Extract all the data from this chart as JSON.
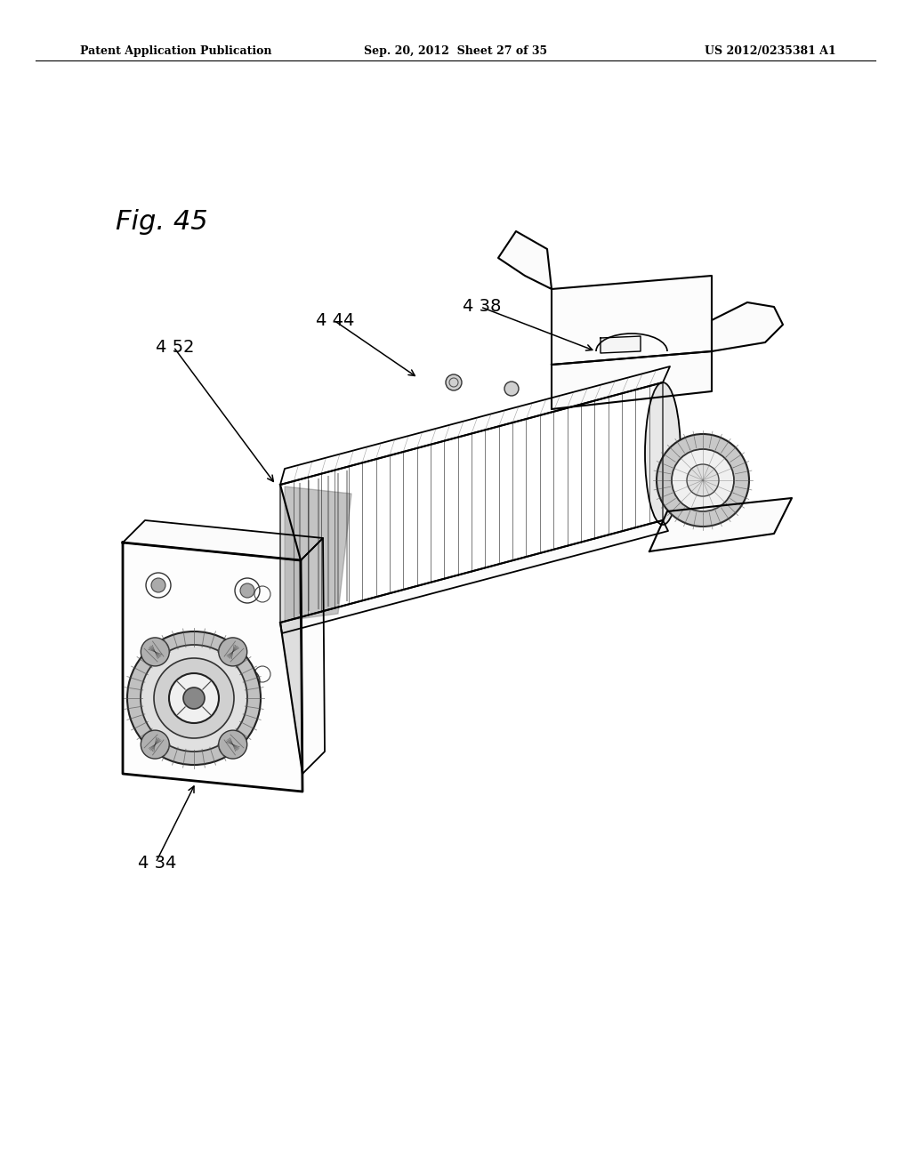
{
  "background_color": "#ffffff",
  "header_left": "Patent Application Publication",
  "header_center": "Sep. 20, 2012  Sheet 27 of 35",
  "header_right": "US 2012/0235381 A1",
  "fig_label": "Fig. 45",
  "ref_452_label": "4 52",
  "ref_444_label": "4 44",
  "ref_438_label": "4 38",
  "ref_434_label": "4 34"
}
